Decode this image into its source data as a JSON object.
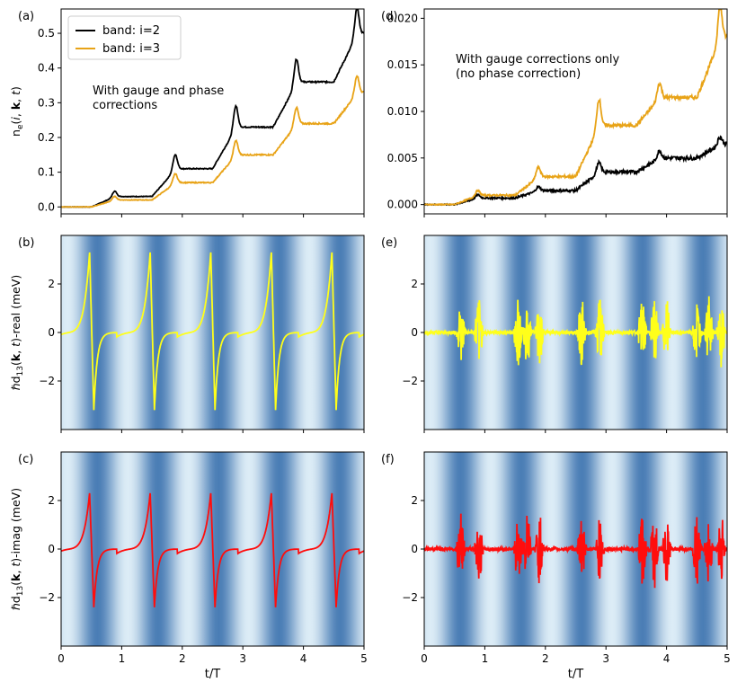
{
  "chart_data": [
    {
      "panel": "a",
      "type": "line",
      "label": "(a)",
      "ylabel_html": "n<tspan font-size='9' dy='3'>e</tspan><tspan dy='-3'>(</tspan><tspan font-style='italic'>i</tspan>, <tspan font-weight='bold'>k</tspan>, <tspan font-style='italic'>t</tspan>)",
      "annotation": [
        "With gauge and phase",
        "corrections"
      ],
      "xlim": [
        0,
        5
      ],
      "ylim": [
        -0.02,
        0.57
      ],
      "yticks": [
        0.0,
        0.1,
        0.2,
        0.3,
        0.4,
        0.5
      ],
      "ytick_labels": [
        "0.0",
        "0.1",
        "0.2",
        "0.3",
        "0.4",
        "0.5"
      ],
      "legend": [
        "band: i=2",
        "band: i=3"
      ],
      "series": [
        {
          "name": "band: i=2",
          "color": "#000000",
          "plateaus": [
            0.0,
            0.03,
            0.11,
            0.23,
            0.36,
            0.5
          ]
        },
        {
          "name": "band: i=3",
          "color": "#e8a317",
          "plateaus": [
            0.0,
            0.02,
            0.07,
            0.15,
            0.24,
            0.33
          ]
        }
      ]
    },
    {
      "panel": "d",
      "type": "line",
      "label": "(d)",
      "annotation": [
        "With gauge corrections only",
        "(no phase correction)"
      ],
      "xlim": [
        0,
        5
      ],
      "ylim": [
        -0.001,
        0.021
      ],
      "yticks": [
        0.0,
        0.005,
        0.01,
        0.015,
        0.02
      ],
      "ytick_labels": [
        "0.000",
        "0.005",
        "0.010",
        "0.015",
        "0.020"
      ],
      "series": [
        {
          "name": "band: i=2",
          "color": "#000000",
          "plateaus": [
            0.0,
            0.0007,
            0.0015,
            0.0035,
            0.005,
            0.0065
          ]
        },
        {
          "name": "band: i=3",
          "color": "#e8a317",
          "plateaus": [
            0.0,
            0.001,
            0.003,
            0.0085,
            0.0115,
            0.018
          ]
        }
      ]
    },
    {
      "panel": "b",
      "type": "line",
      "label": "(b)",
      "ylabel_html": "ℏd<tspan font-size='9' dy='3'>13</tspan><tspan dy='-3'>(</tspan><tspan font-weight='bold'>k</tspan>, <tspan font-style='italic'>t</tspan>)-real (meV)",
      "xlim": [
        0,
        5
      ],
      "ylim": [
        -4,
        4
      ],
      "yticks": [
        -2,
        0,
        2
      ],
      "ytick_labels": [
        "−2",
        "0",
        "2"
      ],
      "series": [
        {
          "name": "real",
          "color": "#ffff1a",
          "peaks": [
            3.3,
            -3.2
          ]
        }
      ]
    },
    {
      "panel": "e",
      "type": "line",
      "label": "(e)",
      "xlim": [
        0,
        5
      ],
      "ylim": [
        -4,
        4
      ],
      "yticks": [
        -2,
        0,
        2
      ],
      "ytick_labels": [
        "−2",
        "0",
        "2"
      ],
      "series": [
        {
          "name": "real",
          "color": "#ffff1a"
        }
      ]
    },
    {
      "panel": "c",
      "type": "line",
      "label": "(c)",
      "ylabel_html": "ℏd<tspan font-size='9' dy='3'>13</tspan><tspan dy='-3'>(</tspan><tspan font-weight='bold'>k</tspan>, <tspan font-style='italic'>t</tspan>)-imag (meV)",
      "xlim": [
        0,
        5
      ],
      "ylim": [
        -4,
        4
      ],
      "yticks": [
        -2,
        0,
        2
      ],
      "ytick_labels": [
        "−2",
        "0",
        "2"
      ],
      "xticks": [
        0,
        1,
        2,
        3,
        4,
        5
      ],
      "xtick_labels": [
        "0",
        "1",
        "2",
        "3",
        "4",
        "5"
      ],
      "xlabel": "t/T",
      "series": [
        {
          "name": "imag",
          "color": "#ff0d0d",
          "peaks": [
            2.3,
            -2.4
          ]
        }
      ]
    },
    {
      "panel": "f",
      "type": "line",
      "label": "(f)",
      "xlim": [
        0,
        5
      ],
      "ylim": [
        -4,
        4
      ],
      "yticks": [
        -2,
        0,
        2
      ],
      "ytick_labels": [
        "−2",
        "0",
        "2"
      ],
      "xticks": [
        0,
        1,
        2,
        3,
        4,
        5
      ],
      "xtick_labels": [
        "0",
        "1",
        "2",
        "3",
        "4",
        "5"
      ],
      "xlabel": "t/T",
      "series": [
        {
          "name": "imag",
          "color": "#ff0d0d"
        }
      ]
    }
  ],
  "colors": {
    "band_light": "#dcecf6",
    "band_dark": "#4a7db5"
  }
}
